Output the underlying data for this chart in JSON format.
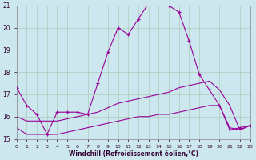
{
  "xlabel": "Windchill (Refroidissement éolien,°C)",
  "background_color": "#cce8ee",
  "grid_color": "#aaccbb",
  "line_color": "#990099",
  "xmin": 0,
  "xmax": 23,
  "ymin": 15,
  "ymax": 21,
  "hours": [
    0,
    1,
    2,
    3,
    4,
    5,
    6,
    7,
    8,
    9,
    10,
    11,
    12,
    13,
    14,
    15,
    16,
    17,
    18,
    19,
    20,
    21,
    22,
    23
  ],
  "temp_line": [
    17.3,
    16.5,
    16.1,
    15.2,
    16.2,
    16.2,
    16.2,
    16.1,
    17.5,
    18.9,
    20.0,
    19.7,
    20.4,
    21.1,
    21.1,
    21.0,
    20.7,
    19.4,
    17.9,
    17.2,
    16.5,
    15.4,
    15.5,
    15.6
  ],
  "line2": [
    16.0,
    15.8,
    15.8,
    15.8,
    15.8,
    15.9,
    16.0,
    16.1,
    16.2,
    16.4,
    16.6,
    16.7,
    16.8,
    16.9,
    17.0,
    17.1,
    17.3,
    17.4,
    17.5,
    17.6,
    17.2,
    16.5,
    15.4,
    15.6
  ],
  "line3": [
    15.5,
    15.2,
    15.2,
    15.2,
    15.2,
    15.3,
    15.4,
    15.5,
    15.6,
    15.7,
    15.8,
    15.9,
    16.0,
    16.0,
    16.1,
    16.1,
    16.2,
    16.3,
    16.4,
    16.5,
    16.5,
    15.5,
    15.4,
    15.6
  ]
}
